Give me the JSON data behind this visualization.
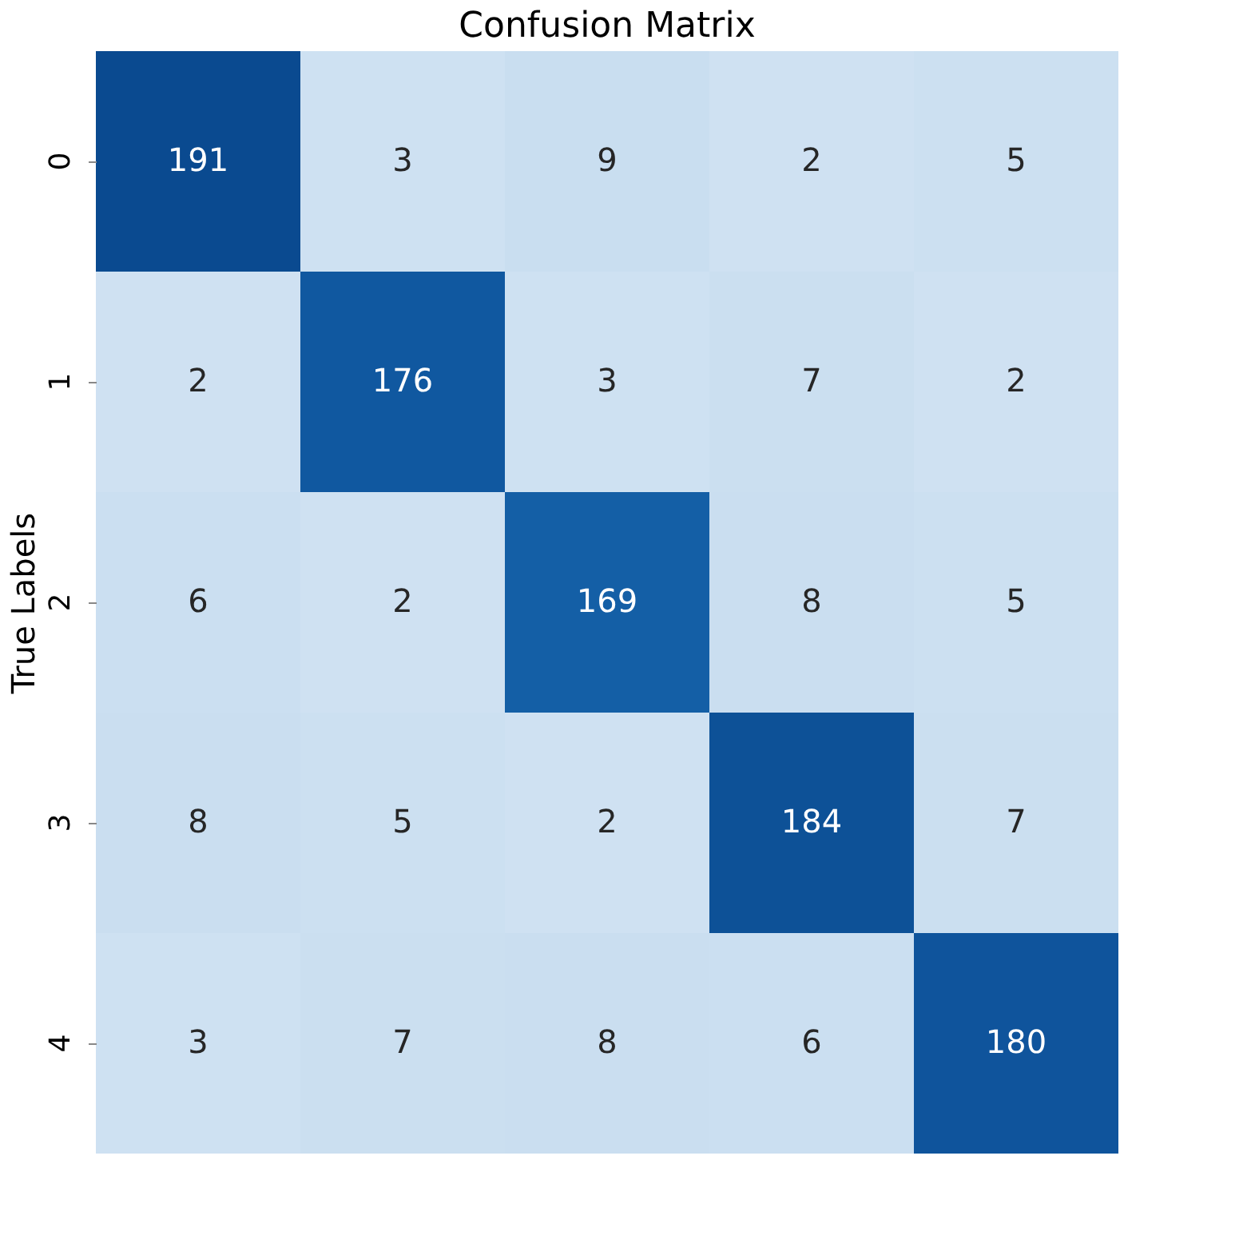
{
  "chart_data": {
    "type": "heatmap",
    "title": "Confusion Matrix",
    "ylabel": "True Labels",
    "categories": [
      null,
      null,
      null,
      null,
      null
    ],
    "y_categories": [
      "0",
      "1",
      "2",
      "3",
      "4"
    ],
    "cells": [
      [
        191,
        3,
        9,
        2,
        5
      ],
      [
        2,
        176,
        3,
        7,
        2
      ],
      [
        6,
        2,
        169,
        8,
        5
      ],
      [
        8,
        5,
        2,
        184,
        7
      ],
      [
        3,
        7,
        8,
        6,
        180
      ]
    ],
    "data_labels": true,
    "tick_labels": "y",
    "grid": false,
    "legend": false
  }
}
